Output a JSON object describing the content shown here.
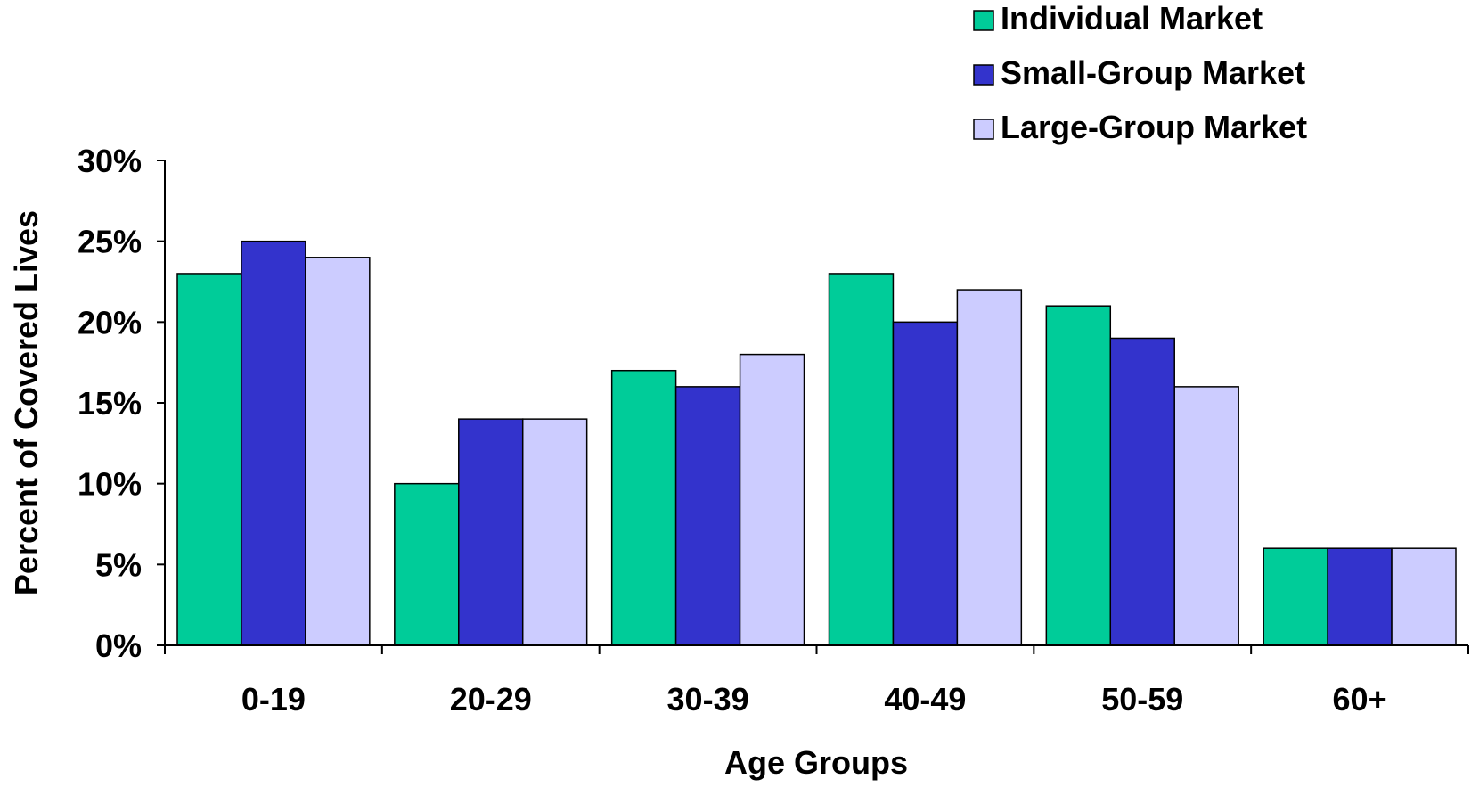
{
  "chart_data": {
    "type": "bar",
    "title": "",
    "xlabel": "Age Groups",
    "ylabel": "Percent of Covered Lives",
    "categories": [
      "0-19",
      "20-29",
      "30-39",
      "40-49",
      "50-59",
      "60+"
    ],
    "series": [
      {
        "name": "Individual Market",
        "color": "#00CC99",
        "values": [
          23,
          10,
          17,
          23,
          21,
          6
        ]
      },
      {
        "name": "Small-Group Market",
        "color": "#3333CC",
        "values": [
          25,
          14,
          16,
          20,
          19,
          6
        ]
      },
      {
        "name": "Large-Group Market",
        "color": "#CCCCFF",
        "values": [
          24,
          14,
          18,
          22,
          16,
          6
        ]
      }
    ],
    "ylim": [
      0,
      30
    ],
    "yticks": [
      0,
      5,
      10,
      15,
      20,
      25,
      30
    ],
    "ytick_labels": [
      "0%",
      "5%",
      "10%",
      "15%",
      "20%",
      "25%",
      "30%"
    ],
    "grid": false,
    "legend_position": "top-right"
  }
}
